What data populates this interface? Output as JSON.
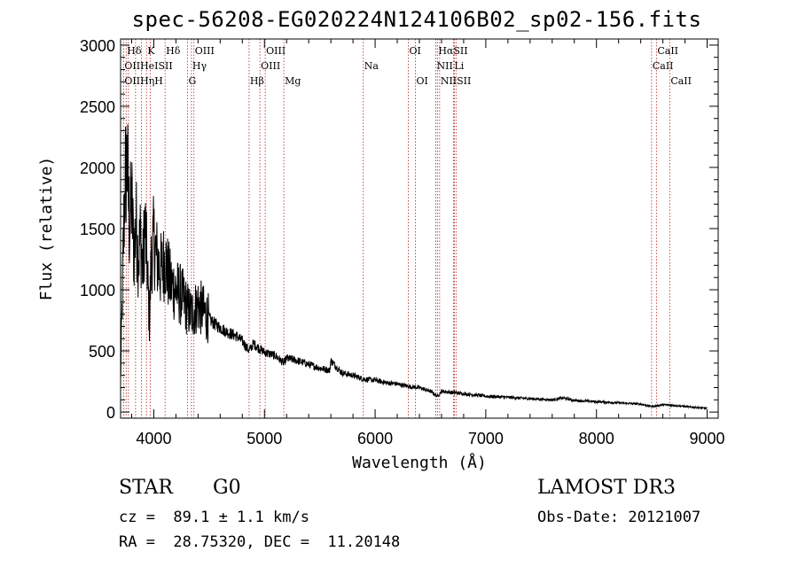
{
  "colors": {
    "spectrum": "#000000",
    "line_marker": "#b22222",
    "axis": "#000000"
  },
  "chart_data": {
    "type": "line",
    "title": "spec-56208-EG020224N124106B02_sp02-156.fits",
    "xlabel": "Wavelength (Å)",
    "ylabel": "Flux (relative)",
    "xlim": [
      3700,
      9100
    ],
    "ylim": [
      -50,
      3050
    ],
    "xticks": [
      4000,
      5000,
      6000,
      7000,
      8000,
      9000
    ],
    "xtick_labels": [
      "4000",
      "5000",
      "6000",
      "7000",
      "8000",
      "9000"
    ],
    "yticks": [
      0,
      500,
      1000,
      1500,
      2000,
      2500,
      3000
    ],
    "ytick_labels": [
      "0",
      "500",
      "1000",
      "1500",
      "2000",
      "2500",
      "3000"
    ],
    "series": [
      {
        "name": "spectrum",
        "x": [
          3700,
          3720,
          3740,
          3760,
          3780,
          3800,
          3820,
          3840,
          3860,
          3880,
          3900,
          3920,
          3940,
          3960,
          3980,
          4000,
          4030,
          4060,
          4100,
          4150,
          4200,
          4250,
          4300,
          4340,
          4400,
          4450,
          4500,
          4550,
          4600,
          4650,
          4700,
          4750,
          4800,
          4861,
          4900,
          4950,
          5000,
          5100,
          5175,
          5200,
          5300,
          5400,
          5500,
          5590,
          5600,
          5700,
          5800,
          5893,
          6000,
          6100,
          6200,
          6300,
          6400,
          6500,
          6563,
          6600,
          6700,
          6800,
          6900,
          7000,
          7200,
          7400,
          7600,
          7700,
          7800,
          8000,
          8200,
          8400,
          8500,
          8600,
          8700,
          8800,
          9000
        ],
        "values": [
          250,
          1150,
          1900,
          2050,
          1500,
          1750,
          1300,
          1550,
          1250,
          1450,
          1150,
          1550,
          1200,
          750,
          1300,
          1400,
          1250,
          1150,
          1250,
          1050,
          1000,
          950,
          850,
          800,
          880,
          820,
          760,
          720,
          690,
          660,
          640,
          620,
          580,
          500,
          560,
          520,
          490,
          460,
          400,
          440,
          420,
          390,
          360,
          340,
          420,
          320,
          300,
          270,
          260,
          240,
          230,
          210,
          200,
          170,
          130,
          170,
          160,
          150,
          140,
          130,
          120,
          110,
          100,
          115,
          95,
          85,
          75,
          65,
          45,
          60,
          55,
          45,
          30
        ]
      }
    ],
    "line_markers": [
      {
        "label": "Hδ",
        "wavelength": 3750,
        "row": 1
      },
      {
        "label": "K",
        "wavelength": 3934,
        "row": 1
      },
      {
        "label": "Hδ",
        "wavelength": 4102,
        "row": 1
      },
      {
        "label": "OIII",
        "wavelength": 4363,
        "row": 1
      },
      {
        "label": "OIII",
        "wavelength": 5007,
        "row": 1
      },
      {
        "label": "OI",
        "wavelength": 6300,
        "row": 1
      },
      {
        "label": "HαSII",
        "wavelength": 6563,
        "row": 1
      },
      {
        "label": "CaII",
        "wavelength": 8542,
        "row": 1
      },
      {
        "label": "OIIHeISII",
        "wavelength": 3727,
        "row": 2
      },
      {
        "label": "Hγ",
        "wavelength": 4340,
        "row": 2
      },
      {
        "label": "OIII",
        "wavelength": 4959,
        "row": 2
      },
      {
        "label": "Na",
        "wavelength": 5893,
        "row": 2
      },
      {
        "label": "NII",
        "wavelength": 6548,
        "row": 2
      },
      {
        "label": "Li",
        "wavelength": 6708,
        "row": 2
      },
      {
        "label": "CaII",
        "wavelength": 8498,
        "row": 2
      },
      {
        "label": "OIIHηH",
        "wavelength": 3727,
        "row": 3
      },
      {
        "label": "G",
        "wavelength": 4305,
        "row": 3
      },
      {
        "label": "Hβ",
        "wavelength": 4861,
        "row": 3
      },
      {
        "label": "Mg",
        "wavelength": 5175,
        "row": 3
      },
      {
        "label": "OI",
        "wavelength": 6364,
        "row": 3
      },
      {
        "label": "NIISII",
        "wavelength": 6583,
        "row": 3
      },
      {
        "label": "CaII",
        "wavelength": 8662,
        "row": 3
      }
    ],
    "marker_positions": [
      3727,
      3750,
      3771,
      3835,
      3889,
      3934,
      3969,
      4102,
      4305,
      4340,
      4363,
      4861,
      4959,
      5007,
      5175,
      5893,
      6300,
      6364,
      6548,
      6563,
      6583,
      6708,
      6716,
      6731,
      8498,
      8542,
      8662
    ]
  },
  "info": {
    "object_class": "STAR",
    "subclass": "G0",
    "survey": "LAMOST DR3",
    "redshift": "cz =  89.1 ± 1.1 km/s",
    "obs_date": "Obs-Date: 20121007",
    "coords": "RA =  28.75320, DEC =  11.20148"
  }
}
